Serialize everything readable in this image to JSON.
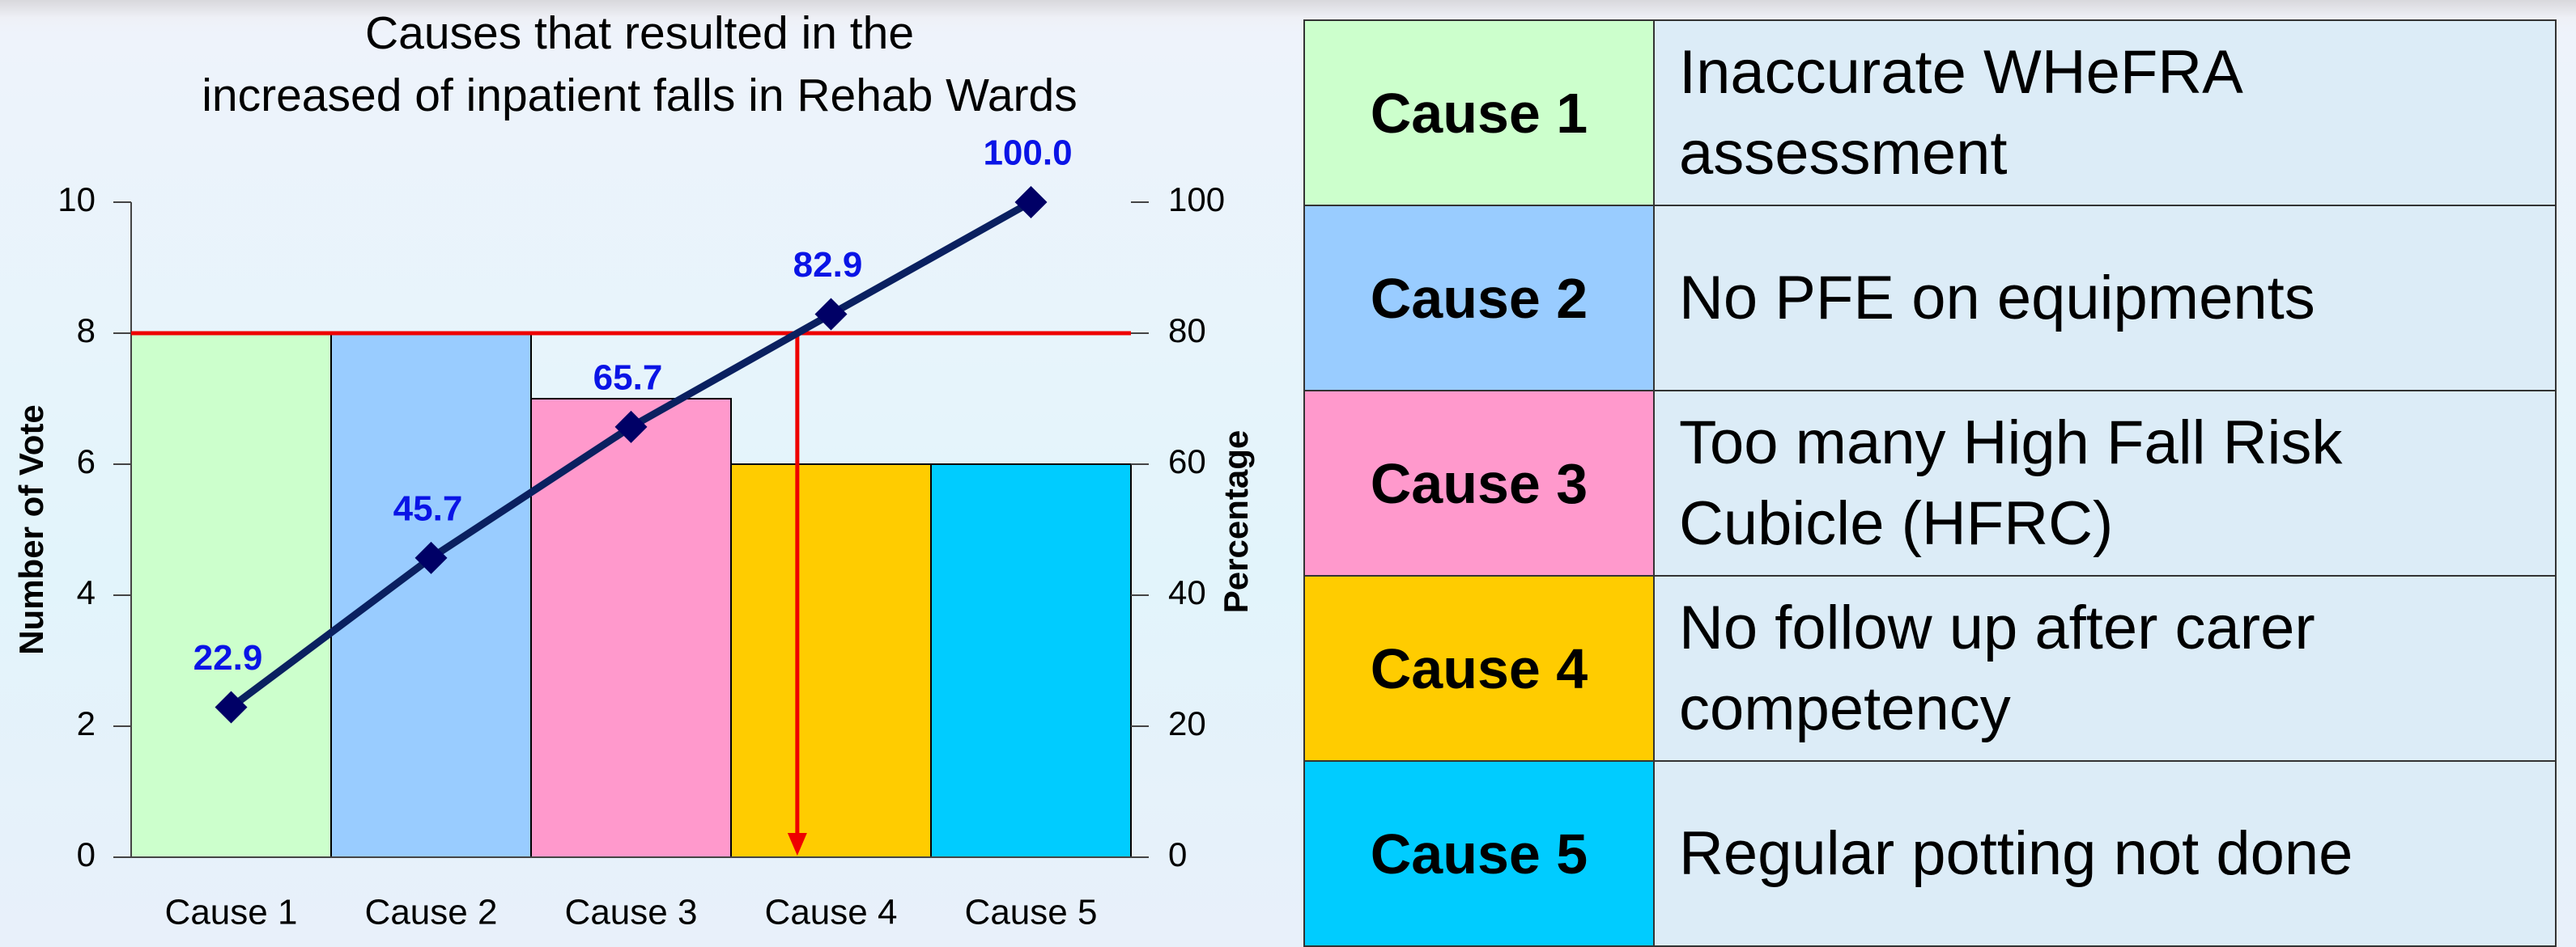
{
  "chart_data": {
    "type": "pareto",
    "title": "Causes that resulted in the",
    "subtitle": "increased of inpatient falls in Rehab Wards",
    "y_label": "Number of Vote",
    "y2_label": "Percentage",
    "categories": [
      "Cause 1",
      "Cause 2",
      "Cause 3",
      "Cause 4",
      "Cause 5"
    ],
    "series": [
      {
        "type": "bar",
        "colors": [
          "#ccffcc",
          "#99ccff",
          "#ff99cc",
          "#ffcc00",
          "#00ccff"
        ],
        "values": [
          8,
          8,
          7,
          6,
          6
        ]
      },
      {
        "type": "line",
        "axis": "y2",
        "color": "#0a2060",
        "values": [
          22.9,
          45.7,
          65.7,
          82.9,
          100.0
        ],
        "value_labels": [
          "22.9",
          "45.7",
          "65.7",
          "82.9",
          "100.0"
        ]
      }
    ],
    "ylim": [
      0,
      10
    ],
    "yticks": [
      0,
      2,
      4,
      6,
      8,
      10
    ],
    "y2lim": [
      0,
      100
    ],
    "y2ticks": [
      0,
      20,
      40,
      60,
      80,
      100
    ],
    "reference_line": {
      "axis": "y2",
      "value": 80,
      "color": "#ee0000"
    },
    "grid": false
  },
  "table": {
    "rows": [
      [
        "Cause 1",
        "Inaccurate WHeFRA assessment"
      ],
      [
        "Cause 2",
        "No PFE on equipments"
      ],
      [
        "Cause 3",
        "Too many High Fall Risk Cubicle (HFRC)"
      ],
      [
        "Cause 4",
        "No follow up after carer competency"
      ],
      [
        "Cause 5",
        "Regular potting not done"
      ]
    ]
  }
}
